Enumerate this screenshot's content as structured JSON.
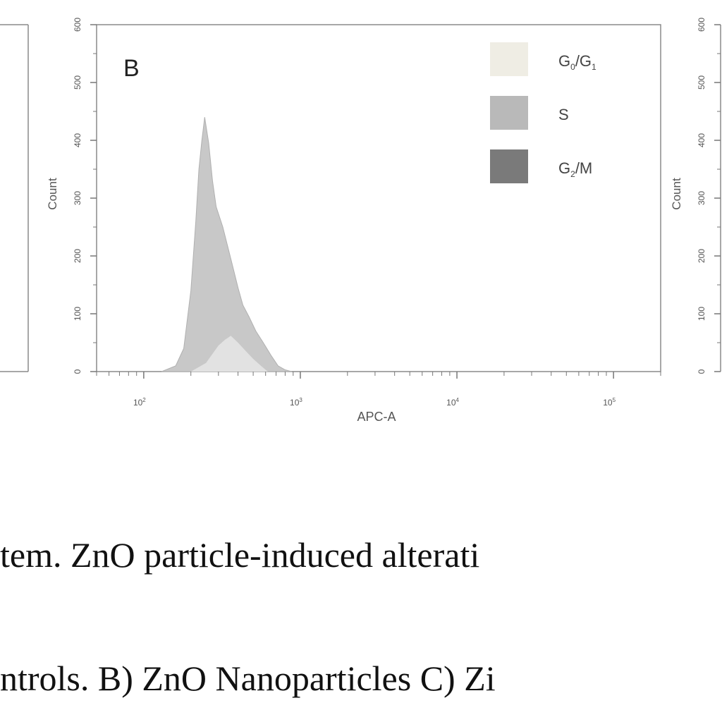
{
  "figure": {
    "left_panel_label": "",
    "right_panel_label": ""
  },
  "caption": {
    "line1": "tem. ZnO particle-induced alterati",
    "line2": "ntrols. B) ZnO Nanoparticles C) Zi"
  },
  "chart_data": {
    "type": "area",
    "panel_label": "B",
    "xlabel": "APC-A",
    "ylabel": "Count",
    "x_scale": "log",
    "xlim": [
      50,
      200000
    ],
    "ylim": [
      0,
      600
    ],
    "grid": false,
    "legend_position": "top-right",
    "x_ticks": [
      {
        "value": 100,
        "base": "10",
        "exp": "2"
      },
      {
        "value": 1000,
        "base": "10",
        "exp": "3"
      },
      {
        "value": 10000,
        "base": "10",
        "exp": "4"
      },
      {
        "value": 100000,
        "base": "10",
        "exp": "5"
      }
    ],
    "y_ticks": [
      0,
      100,
      200,
      300,
      400,
      500,
      600
    ],
    "legend": [
      {
        "base": "G",
        "sub1": "0",
        "mid": "/G",
        "sub2": "1",
        "tail": "",
        "color": "#efede4"
      },
      {
        "base": "S",
        "sub1": "",
        "mid": "",
        "sub2": "",
        "tail": "",
        "color": "#b9b9b9"
      },
      {
        "base": "G",
        "sub1": "2",
        "mid": "",
        "sub2": "",
        "tail": "/M",
        "color": "#7a7a7a"
      }
    ],
    "series": [
      {
        "name": "G0/G1",
        "color": "#c8c8c8",
        "x": [
          130,
          160,
          180,
          200,
          215,
          225,
          235,
          245,
          260,
          275,
          290,
          320,
          360,
          400,
          430,
          470,
          520,
          580,
          650,
          720,
          800,
          880
        ],
        "values": [
          0,
          10,
          40,
          140,
          260,
          350,
          400,
          440,
          395,
          330,
          285,
          250,
          195,
          145,
          115,
          95,
          70,
          50,
          28,
          10,
          3,
          0
        ]
      },
      {
        "name": "S",
        "color": "#e2e2e2",
        "x": [
          200,
          250,
          300,
          330,
          360,
          400,
          450,
          500,
          560,
          620
        ],
        "values": [
          0,
          15,
          45,
          55,
          62,
          50,
          35,
          22,
          10,
          0
        ]
      }
    ]
  }
}
